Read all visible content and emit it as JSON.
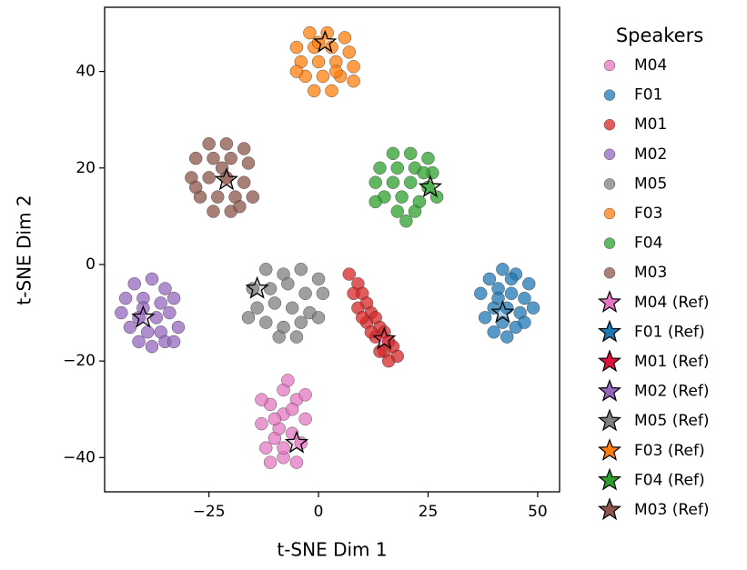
{
  "chart_data": {
    "type": "scatter",
    "xlabel": "t-SNE Dim 1",
    "ylabel": "t-SNE Dim 2",
    "legend_title": "Speakers",
    "legend_position": "outside right",
    "xlim": [
      -48.8,
      55
    ],
    "ylim": [
      -47.1,
      53.3
    ],
    "xticks": [
      {
        "value": -25,
        "label": "−25"
      },
      0,
      25,
      50
    ],
    "yticks": [
      {
        "value": -40,
        "label": "−40"
      },
      {
        "value": -20,
        "label": "−20"
      },
      0,
      20,
      40
    ],
    "series": [
      {
        "name": "M04",
        "color": "#e377c2",
        "marker": "circle",
        "x": [
          -8,
          -11,
          -5,
          -13,
          -3,
          -8,
          -10,
          -6,
          -12,
          -4,
          -8,
          -11,
          -5,
          -9,
          -7,
          -13,
          -3,
          -10,
          -6,
          -8
        ],
        "y": [
          -26,
          -29,
          -28,
          -33,
          -32,
          -31,
          -36,
          -35,
          -38,
          -37,
          -40,
          -41,
          -41,
          -34,
          -24,
          -28,
          -27,
          -32,
          -30,
          -38
        ]
      },
      {
        "name": "F01",
        "color": "#1f77b4",
        "marker": "circle",
        "x": [
          42,
          39,
          45,
          48,
          37,
          41,
          44,
          47,
          40,
          43,
          46,
          49,
          38,
          42,
          45,
          44,
          40,
          47,
          43,
          41
        ],
        "y": [
          -1,
          -3,
          -2,
          -4,
          -6,
          -5,
          -6,
          -7,
          -9,
          -9,
          -10,
          -9,
          -11,
          -12,
          -13,
          -3,
          -14,
          -12,
          -15,
          -7
        ]
      },
      {
        "name": "M01",
        "color": "#d62728",
        "marker": "circle",
        "x": [
          7,
          9,
          8,
          10,
          11,
          9,
          12,
          13,
          11,
          14,
          15,
          13,
          16,
          17,
          15,
          18,
          16,
          14,
          12,
          10
        ],
        "y": [
          -2,
          -4,
          -6,
          -6,
          -8,
          -9,
          -10,
          -11,
          -12,
          -13,
          -14,
          -15,
          -16,
          -17,
          -18,
          -19,
          -20,
          -18,
          -14,
          -11
        ]
      },
      {
        "name": "M02",
        "color": "#9467bd",
        "marker": "circle",
        "x": [
          -42,
          -38,
          -35,
          -44,
          -40,
          -36,
          -33,
          -45,
          -41,
          -37,
          -34,
          -43,
          -39,
          -36,
          -32,
          -41,
          -38,
          -35,
          -40,
          -33
        ],
        "y": [
          -4,
          -3,
          -5,
          -7,
          -7,
          -8,
          -7,
          -10,
          -11,
          -11,
          -10,
          -13,
          -14,
          -14,
          -13,
          -16,
          -17,
          -16,
          -9,
          -16
        ]
      },
      {
        "name": "M05",
        "color": "#7f7f7f",
        "marker": "circle",
        "x": [
          -12,
          -8,
          -4,
          0,
          -15,
          -11,
          -7,
          -3,
          1,
          -14,
          -10,
          -6,
          -2,
          -12,
          -8,
          -4,
          -16,
          0,
          -9,
          -5
        ],
        "y": [
          -1,
          -2,
          -1,
          -3,
          -5,
          -5,
          -4,
          -6,
          -6,
          -9,
          -8,
          -9,
          -10,
          -12,
          -13,
          -12,
          -11,
          -11,
          -15,
          -15
        ]
      },
      {
        "name": "F03",
        "color": "#ff7f0e",
        "marker": "circle",
        "x": [
          -2,
          2,
          6,
          -5,
          -1,
          3,
          7,
          -4,
          0,
          4,
          8,
          -3,
          1,
          5,
          -1,
          3,
          -5,
          8,
          0,
          4
        ],
        "y": [
          48,
          48,
          47,
          45,
          45,
          45,
          44,
          42,
          42,
          42,
          41,
          39,
          39,
          39,
          36,
          36,
          40,
          38,
          46,
          40
        ]
      },
      {
        "name": "F04",
        "color": "#2ca02c",
        "marker": "circle",
        "x": [
          17,
          21,
          25,
          14,
          18,
          22,
          26,
          13,
          17,
          21,
          25,
          15,
          19,
          23,
          18,
          22,
          27,
          13,
          20,
          24
        ],
        "y": [
          23,
          23,
          22,
          20,
          20,
          20,
          19,
          17,
          17,
          17,
          16,
          14,
          14,
          13,
          11,
          11,
          14,
          13,
          9,
          19
        ]
      },
      {
        "name": "M03",
        "color": "#8c564b",
        "marker": "circle",
        "x": [
          -25,
          -21,
          -17,
          -28,
          -24,
          -20,
          -16,
          -29,
          -25,
          -21,
          -17,
          -27,
          -23,
          -19,
          -15,
          -24,
          -20,
          -28,
          -22,
          -18
        ],
        "y": [
          25,
          25,
          24,
          22,
          22,
          22,
          21,
          18,
          18,
          18,
          17,
          14,
          14,
          14,
          14,
          11,
          11,
          16,
          20,
          12
        ]
      },
      {
        "name": "M04 (Ref)",
        "color": "#e377c2",
        "marker": "star",
        "x": [
          -5
        ],
        "y": [
          -37
        ]
      },
      {
        "name": "F01 (Ref)",
        "color": "#1f77b4",
        "marker": "star",
        "x": [
          42
        ],
        "y": [
          -10
        ]
      },
      {
        "name": "M01 (Ref)",
        "color": "#dc143c",
        "marker": "star",
        "x": [
          15
        ],
        "y": [
          -15.5
        ]
      },
      {
        "name": "M02 (Ref)",
        "color": "#9467bd",
        "marker": "star",
        "x": [
          -40
        ],
        "y": [
          -11
        ]
      },
      {
        "name": "M05 (Ref)",
        "color": "#7f7f7f",
        "marker": "star",
        "x": [
          -14
        ],
        "y": [
          -5
        ]
      },
      {
        "name": "F03 (Ref)",
        "color": "#ff7f0e",
        "marker": "star",
        "x": [
          1.5
        ],
        "y": [
          46
        ]
      },
      {
        "name": "F04 (Ref)",
        "color": "#2ca02c",
        "marker": "star",
        "x": [
          25.5
        ],
        "y": [
          16
        ]
      },
      {
        "name": "M03 (Ref)",
        "color": "#8c564b",
        "marker": "star",
        "x": [
          -21
        ],
        "y": [
          17.5
        ]
      }
    ]
  }
}
